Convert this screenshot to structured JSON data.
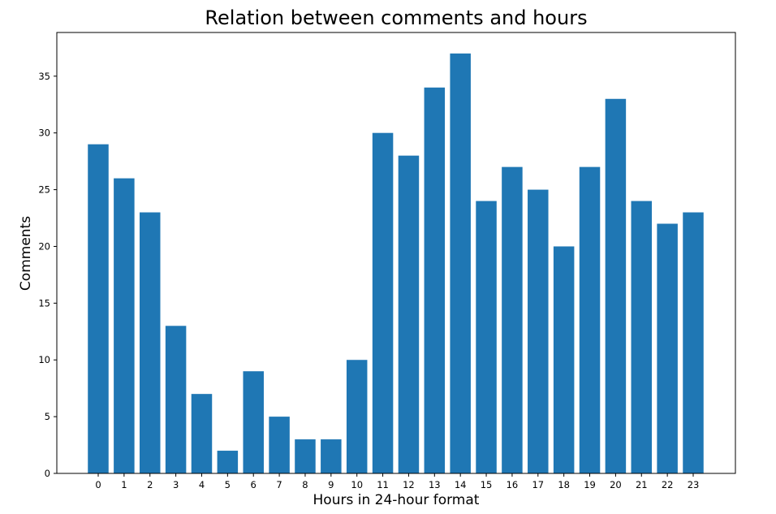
{
  "chart_data": {
    "type": "bar",
    "title": "Relation between comments and hours",
    "xlabel": "Hours in 24-hour format",
    "ylabel": "Comments",
    "categories": [
      "0",
      "1",
      "2",
      "3",
      "4",
      "5",
      "6",
      "7",
      "8",
      "9",
      "10",
      "11",
      "12",
      "13",
      "14",
      "15",
      "16",
      "17",
      "18",
      "19",
      "20",
      "21",
      "22",
      "23"
    ],
    "values": [
      29,
      26,
      23,
      13,
      7,
      2,
      9,
      5,
      3,
      3,
      10,
      30,
      28,
      34,
      37,
      24,
      27,
      25,
      20,
      27,
      33,
      24,
      22,
      23
    ],
    "yticks": [
      0,
      5,
      10,
      15,
      20,
      25,
      30,
      35
    ],
    "ylim": [
      0,
      38.85
    ],
    "grid": false,
    "legend": "none",
    "bar_color": "#1f77b4",
    "axis_color": "#000000"
  }
}
